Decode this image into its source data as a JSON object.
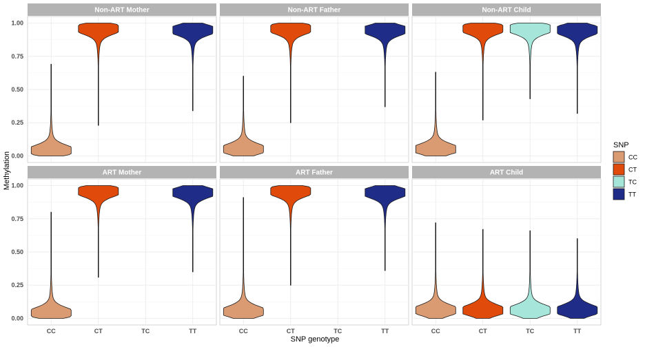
{
  "chart_data": {
    "type": "violin",
    "xlabel": "SNP genotype",
    "ylabel": "Methylation",
    "categories": [
      "CC",
      "CT",
      "TC",
      "TT"
    ],
    "yticks": [
      "0.00",
      "0.25",
      "0.50",
      "0.75",
      "1.00"
    ],
    "ylim": [
      0,
      1
    ],
    "grid": true,
    "legend": {
      "title": "SNP",
      "position": "right",
      "items": [
        {
          "label": "CC",
          "color": "#DA9A72"
        },
        {
          "label": "CT",
          "color": "#E04A0B"
        },
        {
          "label": "TC",
          "color": "#A6E6DA"
        },
        {
          "label": "TT",
          "color": "#1F2C88"
        }
      ]
    },
    "panels": [
      {
        "title": "Non-ART Mother",
        "violins": [
          {
            "category": "CC",
            "min": 0.0,
            "max": 0.69,
            "mode": 0.04,
            "shape": "low"
          },
          {
            "category": "CT",
            "min": 0.23,
            "max": 1.0,
            "mode": 0.96,
            "shape": "high"
          },
          {
            "category": "TT",
            "min": 0.34,
            "max": 1.0,
            "mode": 0.95,
            "shape": "high"
          }
        ]
      },
      {
        "title": "Non-ART Father",
        "violins": [
          {
            "category": "CC",
            "min": 0.0,
            "max": 0.6,
            "mode": 0.05,
            "shape": "low"
          },
          {
            "category": "CT",
            "min": 0.25,
            "max": 1.0,
            "mode": 0.96,
            "shape": "high"
          },
          {
            "category": "TT",
            "min": 0.37,
            "max": 1.0,
            "mode": 0.95,
            "shape": "high"
          }
        ]
      },
      {
        "title": "Non-ART Child",
        "violins": [
          {
            "category": "CC",
            "min": 0.0,
            "max": 0.63,
            "mode": 0.05,
            "shape": "low"
          },
          {
            "category": "CT",
            "min": 0.27,
            "max": 1.0,
            "mode": 0.96,
            "shape": "high"
          },
          {
            "category": "TC",
            "min": 0.43,
            "max": 1.0,
            "mode": 0.96,
            "shape": "high"
          },
          {
            "category": "TT",
            "min": 0.32,
            "max": 1.0,
            "mode": 0.95,
            "shape": "high"
          }
        ]
      },
      {
        "title": "ART Mother",
        "violins": [
          {
            "category": "CC",
            "min": 0.0,
            "max": 0.8,
            "mode": 0.04,
            "shape": "low"
          },
          {
            "category": "CT",
            "min": 0.31,
            "max": 1.0,
            "mode": 0.96,
            "shape": "high"
          },
          {
            "category": "TT",
            "min": 0.35,
            "max": 1.0,
            "mode": 0.95,
            "shape": "high"
          }
        ]
      },
      {
        "title": "ART Father",
        "violins": [
          {
            "category": "CC",
            "min": 0.0,
            "max": 0.91,
            "mode": 0.05,
            "shape": "low"
          },
          {
            "category": "CT",
            "min": 0.25,
            "max": 1.0,
            "mode": 0.96,
            "shape": "high"
          },
          {
            "category": "TT",
            "min": 0.36,
            "max": 1.0,
            "mode": 0.95,
            "shape": "high"
          }
        ]
      },
      {
        "title": "ART Child",
        "violins": [
          {
            "category": "CC",
            "min": 0.0,
            "max": 0.72,
            "mode": 0.06,
            "shape": "low"
          },
          {
            "category": "CT",
            "min": 0.0,
            "max": 0.67,
            "mode": 0.06,
            "shape": "low"
          },
          {
            "category": "TC",
            "min": 0.0,
            "max": 0.66,
            "mode": 0.06,
            "shape": "low"
          },
          {
            "category": "TT",
            "min": 0.0,
            "max": 0.6,
            "mode": 0.06,
            "shape": "low"
          }
        ]
      }
    ]
  }
}
